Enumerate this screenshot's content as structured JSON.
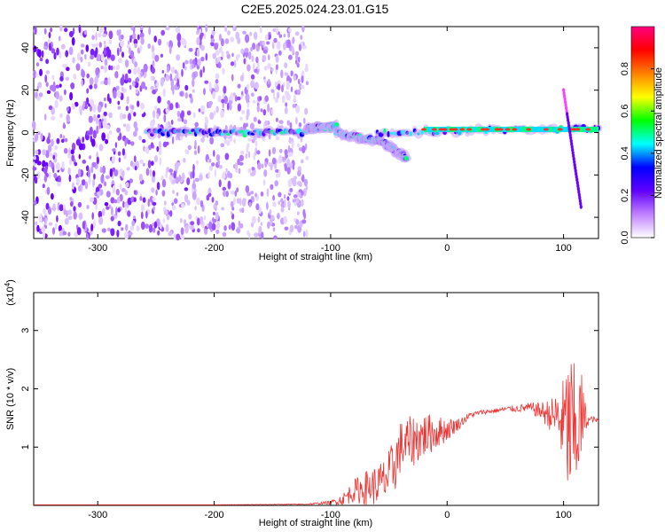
{
  "title": "C2E5.2025.024.23.01.G15",
  "colors": {
    "snr_line": "#ee3333",
    "frame": "#000000"
  },
  "spectrogram": {
    "xlabel": "Height of straight line (km)",
    "ylabel": "Frequency (Hz)",
    "xlim": [
      -355,
      130
    ],
    "ylim": [
      -50,
      50
    ],
    "xticks": [
      -300,
      -200,
      -100,
      0,
      100
    ],
    "yticks": [
      -40,
      -20,
      0,
      20,
      40
    ],
    "noise_region": [
      -355,
      -120
    ],
    "carrier_segments": [
      {
        "x": [
          -258,
          -120
        ],
        "f": [
          0,
          0
        ]
      },
      {
        "x": [
          -120,
          -95
        ],
        "f": [
          2,
          3
        ]
      },
      {
        "x": [
          -95,
          -60
        ],
        "f": [
          0,
          -4
        ]
      },
      {
        "x": [
          -60,
          -35
        ],
        "f": [
          -3,
          -12
        ]
      },
      {
        "x": [
          -60,
          130
        ],
        "f": [
          0,
          2
        ]
      }
    ],
    "spike": {
      "x": [
        100,
        115
      ],
      "f": [
        20,
        -35
      ]
    }
  },
  "colorbar": {
    "label": "Normalized spectral amplitude",
    "ticks": [
      "0.0",
      "0.2",
      "0.4",
      "0.6",
      "0.8"
    ],
    "range": [
      0,
      1
    ],
    "colormap": [
      "#ffffff",
      "#c080ff",
      "#6000ff",
      "#0000ff",
      "#00ffff",
      "#00ff00",
      "#ffff00",
      "#ff8000",
      "#ff0000",
      "#ff0080"
    ]
  },
  "chart_data": {
    "type": "line",
    "title": "",
    "xlabel": "Height of straight line (km)",
    "ylabel": "SNR (10 * v/v)",
    "y_multiplier": "(x10",
    "y_multiplier_exp": "4",
    "y_multiplier_close": ")",
    "xlim": [
      -355,
      130
    ],
    "ylim": [
      0,
      3.65
    ],
    "xticks": [
      -300,
      -200,
      -100,
      0,
      100
    ],
    "yticks": [
      1,
      2,
      3
    ],
    "series": [
      {
        "x": [
          -355,
          -300,
          -200,
          -120,
          -100,
          -90,
          -80,
          -70,
          -60,
          -55,
          -50,
          -45,
          -40,
          -30,
          -20,
          -10,
          0,
          10,
          20,
          30,
          40,
          50,
          60,
          70,
          80,
          90,
          95,
          100,
          105,
          108,
          110,
          115,
          120,
          125,
          130
        ],
        "y": [
          0.01,
          0.01,
          0.01,
          0.02,
          0.05,
          0.1,
          0.25,
          0.3,
          0.35,
          0.4,
          0.5,
          0.7,
          1.0,
          1.1,
          1.2,
          1.25,
          1.3,
          1.4,
          1.55,
          1.6,
          1.62,
          1.65,
          1.66,
          1.68,
          1.62,
          1.55,
          1.5,
          1.4,
          1.3,
          1.2,
          1.2,
          1.5,
          1.45,
          1.48,
          1.45
        ],
        "spread": [
          0.0,
          0.0,
          0.0,
          0.01,
          0.03,
          0.1,
          0.2,
          0.3,
          0.35,
          0.4,
          0.45,
          0.5,
          0.45,
          0.45,
          0.4,
          0.3,
          0.2,
          0.1,
          0.05,
          0.04,
          0.04,
          0.05,
          0.06,
          0.08,
          0.15,
          0.3,
          0.5,
          0.8,
          1.4,
          1.4,
          1.1,
          0.9,
          0.1,
          0.05,
          0.04
        ]
      }
    ]
  }
}
